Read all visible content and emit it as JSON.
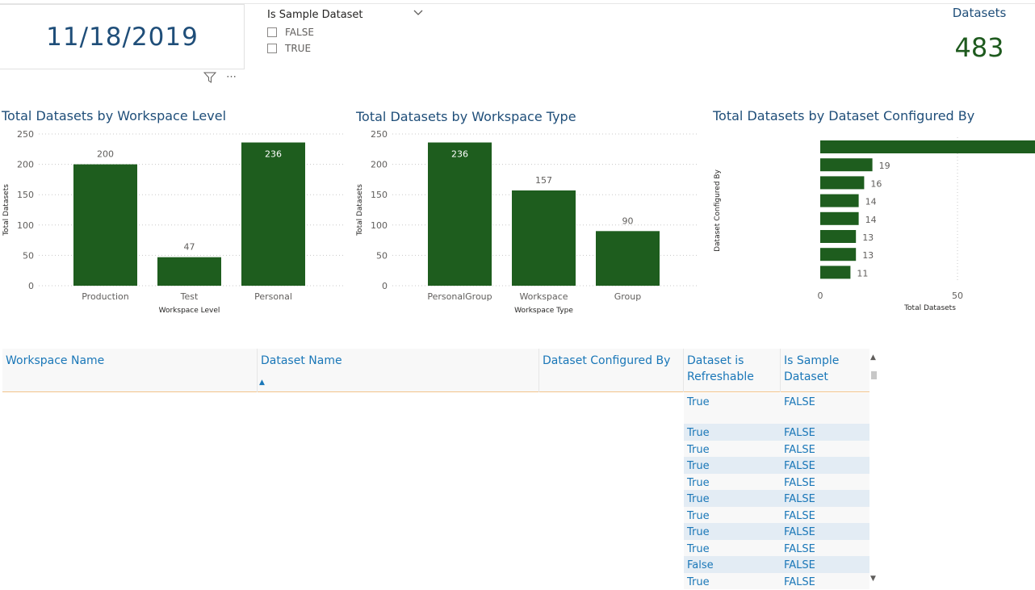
{
  "date_card": {
    "value": "11/18/2019"
  },
  "slicer": {
    "title": "Is Sample Dataset",
    "options": [
      "FALSE",
      "TRUE"
    ]
  },
  "kpi": {
    "title": "Datasets",
    "value": "483"
  },
  "colors": {
    "bar": "#1e5d1e",
    "accent_text": "#1a77b8",
    "title": "#1f4e79"
  },
  "chart_data": [
    {
      "type": "bar",
      "title": "Total Datasets by Workspace Level",
      "categories": [
        "Production",
        "Test",
        "Personal"
      ],
      "values": [
        200,
        47,
        236
      ],
      "xlabel": "Workspace Level",
      "ylabel": "Total Datasets",
      "ylim": [
        0,
        250
      ],
      "yticks": [
        "0",
        "50",
        "100",
        "150",
        "200",
        "250"
      ],
      "grid": true
    },
    {
      "type": "bar",
      "title": "Total Datasets by Workspace Type",
      "categories": [
        "PersonalGroup",
        "Workspace",
        "Group"
      ],
      "values": [
        236,
        157,
        90
      ],
      "xlabel": "Workspace Type",
      "ylabel": "Total Datasets",
      "ylim": [
        0,
        250
      ],
      "yticks": [
        "0",
        "50",
        "100",
        "150",
        "200",
        "250"
      ],
      "grid": true
    },
    {
      "type": "bar",
      "orientation": "horizontal",
      "title": "Total Datasets by Dataset Configured By",
      "categories": [
        "",
        "",
        "",
        "",
        "",
        "",
        "",
        ""
      ],
      "values": [
        87,
        19,
        16,
        14,
        14,
        13,
        13,
        11
      ],
      "xlabel": "Total Datasets",
      "ylabel": "Dataset Configured By",
      "xlim": [
        0,
        100
      ],
      "xticks": [
        "0",
        "50",
        "1"
      ],
      "grid": true
    }
  ],
  "table": {
    "columns": [
      "Workspace Name",
      "Dataset Name",
      "Dataset Configured By",
      "Dataset is Refreshable",
      "Is Sample Dataset"
    ],
    "rows": [
      [
        "",
        "",
        "",
        "True",
        "FALSE"
      ],
      [
        "",
        "",
        "",
        "True",
        "FALSE"
      ],
      [
        "",
        "",
        "",
        "True",
        "FALSE"
      ],
      [
        "",
        "",
        "",
        "True",
        "FALSE"
      ],
      [
        "",
        "",
        "",
        "True",
        "FALSE"
      ],
      [
        "",
        "",
        "",
        "True",
        "FALSE"
      ],
      [
        "",
        "",
        "",
        "True",
        "FALSE"
      ],
      [
        "",
        "",
        "",
        "True",
        "FALSE"
      ],
      [
        "",
        "",
        "",
        "True",
        "FALSE"
      ],
      [
        "",
        "",
        "",
        "False",
        "FALSE"
      ],
      [
        "",
        "",
        "",
        "True",
        "FALSE"
      ]
    ]
  }
}
